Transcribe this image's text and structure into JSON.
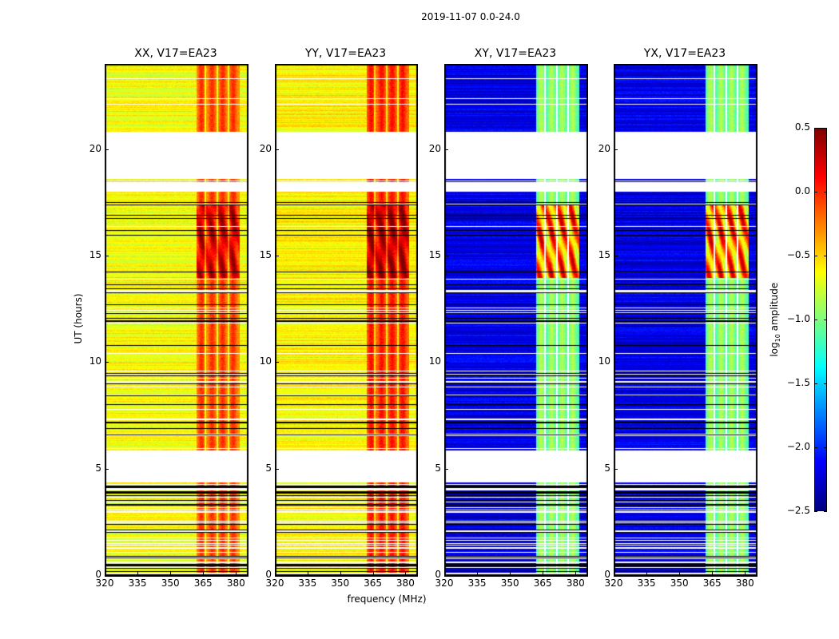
{
  "chart_data": {
    "type": "heatmap",
    "title": "2019-11-07 0.0-24.0",
    "xlabel": "frequency (MHz)",
    "ylabel": "UT (hours)",
    "xlim": [
      320,
      385
    ],
    "ylim": [
      0,
      24
    ],
    "xticks": [
      320,
      335,
      350,
      365,
      380
    ],
    "yticks": [
      0,
      5,
      10,
      15,
      20
    ],
    "panels": [
      {
        "title": "XX, V17=EA23",
        "base": -0.65,
        "band": -0.15,
        "peak": 0.35
      },
      {
        "title": "YY, V17=EA23",
        "base": -0.6,
        "band": -0.05,
        "peak": 0.45
      },
      {
        "title": "XY, V17=EA23",
        "base": -2.2,
        "band": -1.0,
        "peak": 0.2
      },
      {
        "title": "YX, V17=EA23",
        "base": -2.2,
        "band": -1.0,
        "peak": 0.2
      }
    ],
    "bright_band_mhz": [
      361.5,
      381
    ],
    "band_gaps_mhz": [
      365.5,
      371,
      376
    ],
    "peak_hours": [
      14,
      17.5
    ],
    "flagged_hours": [
      [
        4.4,
        5.9
      ],
      [
        18.7,
        20.85
      ],
      [
        18.05,
        18.5
      ]
    ],
    "colorbar": {
      "label_main": "log",
      "label_sub": "10",
      "label_rest": " amplitude",
      "range": [
        -2.5,
        0.5
      ],
      "ticks": [
        "0.5",
        "0.0",
        "−0.5",
        "−1.0",
        "−1.5",
        "−2.0",
        "−2.5"
      ],
      "tick_values": [
        0.5,
        0.0,
        -0.5,
        -1.0,
        -1.5,
        -2.0,
        -2.5
      ],
      "colormap": "jet"
    }
  }
}
